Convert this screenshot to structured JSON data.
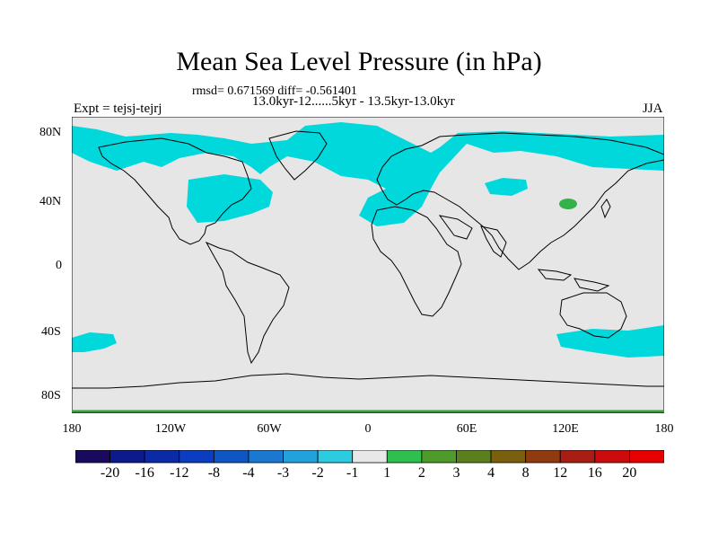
{
  "title": "Mean Sea Level Pressure (in hPa)",
  "stats": "rmsd= 0.671569 diff= -0.561401",
  "period": "13.0kyr-12......5kyr - 13.5kyr-13.0kyr",
  "experiment": "Expt = tejsj-tejrj",
  "season": "JJA",
  "y_ticks": [
    "80N",
    "40N",
    "0",
    "40S",
    "80S"
  ],
  "x_ticks": [
    "180",
    "120W",
    "60W",
    "0",
    "60E",
    "120E",
    "180"
  ],
  "colorbar": {
    "labels": [
      "-20",
      "-16",
      "-12",
      "-8",
      "-4",
      "-3",
      "-2",
      "-1",
      "1",
      "2",
      "3",
      "4",
      "8",
      "12",
      "16",
      "20"
    ],
    "colors": [
      "#1a0a5e",
      "#0d1a8c",
      "#0b2aa6",
      "#0a3dbf",
      "#0d56c4",
      "#1a78d0",
      "#22a2dc",
      "#2ccbe0",
      "#e8e8e8",
      "#2fbf4f",
      "#4e9a2a",
      "#5b7f1a",
      "#7a5f0f",
      "#8f3b0f",
      "#a81d14",
      "#cc0c0c",
      "#e60000"
    ]
  },
  "field_colors": {
    "background": "#e6e6e6",
    "negative": "#00d8dc",
    "positive": "#35b149",
    "coast": "#000000"
  }
}
